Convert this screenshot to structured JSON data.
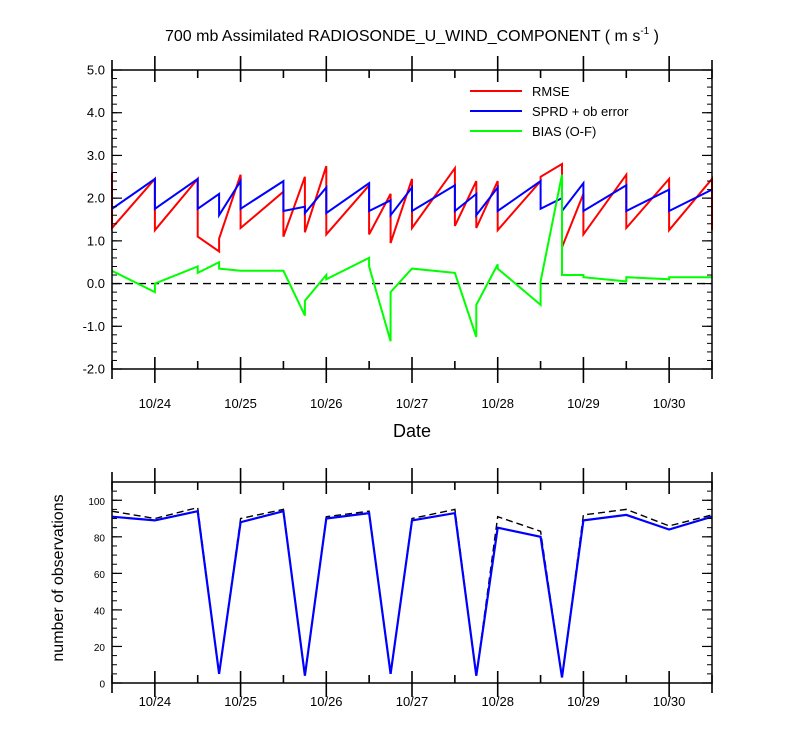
{
  "chart_data": [
    {
      "type": "line",
      "title": "700 mb Assimilated RADIOSONDE_U_WIND_COMPONENT ( m s",
      "title_superscript": "-1",
      "title_suffix": " )",
      "xlabel": "Date",
      "ylabel": "",
      "ylim": [
        -2.0,
        5.0
      ],
      "y_ticks": [
        "-2.0",
        "-1.0",
        "0.0",
        "1.0",
        "2.0",
        "3.0",
        "4.0",
        "5.0"
      ],
      "xlim": [
        23.5,
        30.5
      ],
      "x_tick_labels": [
        "10/24",
        "10/25",
        "10/26",
        "10/27",
        "10/28",
        "10/29",
        "10/30"
      ],
      "reference_line": 0.0,
      "legend_position": "top-right",
      "grid": false,
      "series": [
        {
          "name": "RMSE",
          "color": "#ff0000",
          "points": [
            [
              23.5,
              2.6
            ],
            [
              23.5,
              1.3
            ],
            [
              24.0,
              2.45
            ],
            [
              24.0,
              1.25
            ],
            [
              24.5,
              2.45
            ],
            [
              24.5,
              1.1
            ],
            [
              24.75,
              0.75
            ],
            [
              24.75,
              1.05
            ],
            [
              25.0,
              2.55
            ],
            [
              25.0,
              1.3
            ],
            [
              25.5,
              2.15
            ],
            [
              25.5,
              1.1
            ],
            [
              25.75,
              2.5
            ],
            [
              25.75,
              1.2
            ],
            [
              26.0,
              2.75
            ],
            [
              26.0,
              1.15
            ],
            [
              26.5,
              2.3
            ],
            [
              26.5,
              1.15
            ],
            [
              26.75,
              2.1
            ],
            [
              26.75,
              0.95
            ],
            [
              27.0,
              2.45
            ],
            [
              27.0,
              1.3
            ],
            [
              27.5,
              2.7
            ],
            [
              27.5,
              1.35
            ],
            [
              27.75,
              2.4
            ],
            [
              27.75,
              1.3
            ],
            [
              28.0,
              2.4
            ],
            [
              28.0,
              1.25
            ],
            [
              28.5,
              2.4
            ],
            [
              28.5,
              2.5
            ],
            [
              28.75,
              2.8
            ],
            [
              28.75,
              0.85
            ],
            [
              29.0,
              2.1
            ],
            [
              29.0,
              1.15
            ],
            [
              29.5,
              2.55
            ],
            [
              29.5,
              1.3
            ],
            [
              30.0,
              2.45
            ],
            [
              30.0,
              1.25
            ],
            [
              30.5,
              2.45
            ],
            [
              30.5,
              1.25
            ]
          ]
        },
        {
          "name": "SPRD + ob error",
          "color": "#0000ff",
          "points": [
            [
              23.5,
              1.75
            ],
            [
              24.0,
              2.45
            ],
            [
              24.0,
              1.75
            ],
            [
              24.5,
              2.45
            ],
            [
              24.5,
              1.75
            ],
            [
              24.75,
              2.1
            ],
            [
              24.75,
              1.6
            ],
            [
              25.0,
              2.4
            ],
            [
              25.0,
              1.75
            ],
            [
              25.5,
              2.4
            ],
            [
              25.5,
              1.7
            ],
            [
              25.75,
              1.8
            ],
            [
              25.75,
              1.65
            ],
            [
              26.0,
              2.25
            ],
            [
              26.0,
              1.65
            ],
            [
              26.5,
              2.35
            ],
            [
              26.5,
              1.7
            ],
            [
              26.75,
              1.95
            ],
            [
              26.75,
              1.6
            ],
            [
              27.0,
              2.25
            ],
            [
              27.0,
              1.7
            ],
            [
              27.5,
              2.3
            ],
            [
              27.5,
              1.7
            ],
            [
              27.75,
              2.1
            ],
            [
              27.75,
              1.6
            ],
            [
              28.0,
              2.25
            ],
            [
              28.0,
              1.7
            ],
            [
              28.5,
              2.4
            ],
            [
              28.5,
              1.75
            ],
            [
              28.75,
              2.0
            ],
            [
              28.75,
              1.7
            ],
            [
              29.0,
              2.35
            ],
            [
              29.0,
              1.7
            ],
            [
              29.5,
              2.3
            ],
            [
              29.5,
              1.7
            ],
            [
              30.0,
              2.2
            ],
            [
              30.0,
              1.7
            ],
            [
              30.5,
              2.2
            ]
          ]
        },
        {
          "name": "BIAS (O-F)",
          "color": "#00ff00",
          "points": [
            [
              23.5,
              0.3
            ],
            [
              24.0,
              -0.2
            ],
            [
              24.0,
              0.0
            ],
            [
              24.5,
              0.4
            ],
            [
              24.5,
              0.25
            ],
            [
              24.75,
              0.5
            ],
            [
              24.75,
              0.35
            ],
            [
              25.0,
              0.3
            ],
            [
              25.5,
              0.3
            ],
            [
              25.75,
              -0.75
            ],
            [
              25.75,
              -0.4
            ],
            [
              26.0,
              0.2
            ],
            [
              26.0,
              0.1
            ],
            [
              26.5,
              0.6
            ],
            [
              26.5,
              0.4
            ],
            [
              26.75,
              -1.35
            ],
            [
              26.75,
              -0.2
            ],
            [
              27.0,
              0.35
            ],
            [
              27.5,
              0.25
            ],
            [
              27.75,
              -1.25
            ],
            [
              27.75,
              -0.5
            ],
            [
              28.0,
              0.45
            ],
            [
              28.0,
              0.35
            ],
            [
              28.5,
              -0.5
            ],
            [
              28.5,
              0.05
            ],
            [
              28.75,
              2.55
            ],
            [
              28.75,
              0.2
            ],
            [
              29.0,
              0.2
            ],
            [
              29.0,
              0.15
            ],
            [
              29.5,
              0.05
            ],
            [
              29.5,
              0.15
            ],
            [
              30.0,
              0.1
            ],
            [
              30.0,
              0.15
            ],
            [
              30.5,
              0.15
            ]
          ]
        }
      ]
    },
    {
      "type": "line",
      "title": "",
      "xlabel": "",
      "ylabel": "number of observations",
      "ylim": [
        0,
        110
      ],
      "y_ticks": [
        "0",
        "20",
        "40",
        "60",
        "80",
        "100"
      ],
      "xlim": [
        23.5,
        30.5
      ],
      "x_tick_labels": [
        "10/24",
        "10/25",
        "10/26",
        "10/27",
        "10/28",
        "10/29",
        "10/30"
      ],
      "grid": false,
      "series": [
        {
          "style": "dashed",
          "color": "#000000",
          "points": [
            [
              23.5,
              94
            ],
            [
              24.0,
              90
            ],
            [
              24.5,
              96
            ],
            [
              24.75,
              5
            ],
            [
              25.0,
              90
            ],
            [
              25.5,
              95
            ],
            [
              25.75,
              4
            ],
            [
              26.0,
              91
            ],
            [
              26.5,
              94
            ],
            [
              26.75,
              5
            ],
            [
              27.0,
              90
            ],
            [
              27.5,
              95
            ],
            [
              27.75,
              4
            ],
            [
              28.0,
              91
            ],
            [
              28.5,
              83
            ],
            [
              28.75,
              3
            ],
            [
              29.0,
              92
            ],
            [
              29.5,
              95
            ],
            [
              30.0,
              86
            ],
            [
              30.5,
              92
            ]
          ]
        },
        {
          "style": "solid",
          "color": "#0000ff",
          "points": [
            [
              23.5,
              91
            ],
            [
              24.0,
              89
            ],
            [
              24.5,
              94
            ],
            [
              24.75,
              5
            ],
            [
              25.0,
              88
            ],
            [
              25.5,
              94
            ],
            [
              25.75,
              4
            ],
            [
              26.0,
              90
            ],
            [
              26.5,
              93
            ],
            [
              26.75,
              5
            ],
            [
              27.0,
              89
            ],
            [
              27.5,
              93
            ],
            [
              27.75,
              4
            ],
            [
              28.0,
              85
            ],
            [
              28.5,
              80
            ],
            [
              28.75,
              3
            ],
            [
              29.0,
              89
            ],
            [
              29.5,
              92
            ],
            [
              30.0,
              84
            ],
            [
              30.5,
              91
            ]
          ]
        }
      ]
    }
  ]
}
